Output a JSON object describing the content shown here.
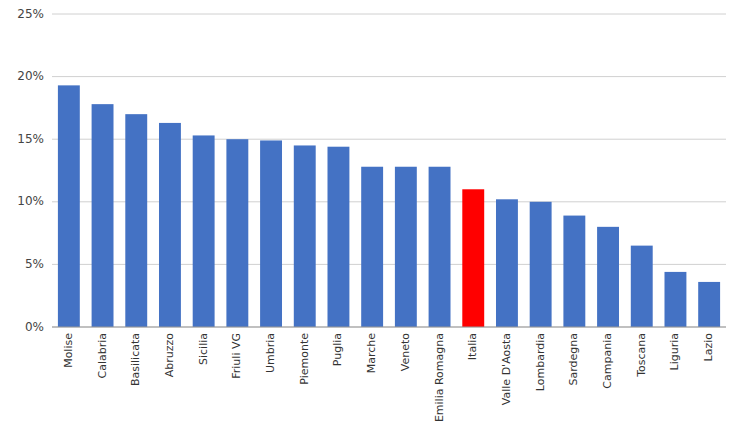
{
  "chart_data": {
    "type": "bar",
    "categories": [
      "Molise",
      "Calabria",
      "Basilicata",
      "Abruzzo",
      "Sicilia",
      "Friuli VG",
      "Umbria",
      "Piemonte",
      "Puglia",
      "Marche",
      "Veneto",
      "Emilia Romagna",
      "Italia",
      "Valle D'Aosta",
      "Lombardia",
      "Sardegna",
      "Campania",
      "Toscana",
      "Liguria",
      "Lazio"
    ],
    "values": [
      0.193,
      0.178,
      0.17,
      0.163,
      0.153,
      0.15,
      0.149,
      0.145,
      0.144,
      0.128,
      0.128,
      0.128,
      0.11,
      0.102,
      0.1,
      0.089,
      0.08,
      0.065,
      0.044,
      0.036
    ],
    "colors": [
      "#4472C4",
      "#4472C4",
      "#4472C4",
      "#4472C4",
      "#4472C4",
      "#4472C4",
      "#4472C4",
      "#4472C4",
      "#4472C4",
      "#4472C4",
      "#4472C4",
      "#4472C4",
      "#FF0000",
      "#4472C4",
      "#4472C4",
      "#4472C4",
      "#4472C4",
      "#4472C4",
      "#4472C4",
      "#4472C4"
    ],
    "ylim": [
      0,
      0.25
    ],
    "yticks": [
      {
        "value": 0,
        "label": "0%"
      },
      {
        "value": 0.05,
        "label": "5%"
      },
      {
        "value": 0.1,
        "label": "10%"
      },
      {
        "value": 0.15,
        "label": "15%"
      },
      {
        "value": 0.2,
        "label": "20%"
      },
      {
        "value": 0.25,
        "label": "25%"
      }
    ],
    "grid": true
  }
}
